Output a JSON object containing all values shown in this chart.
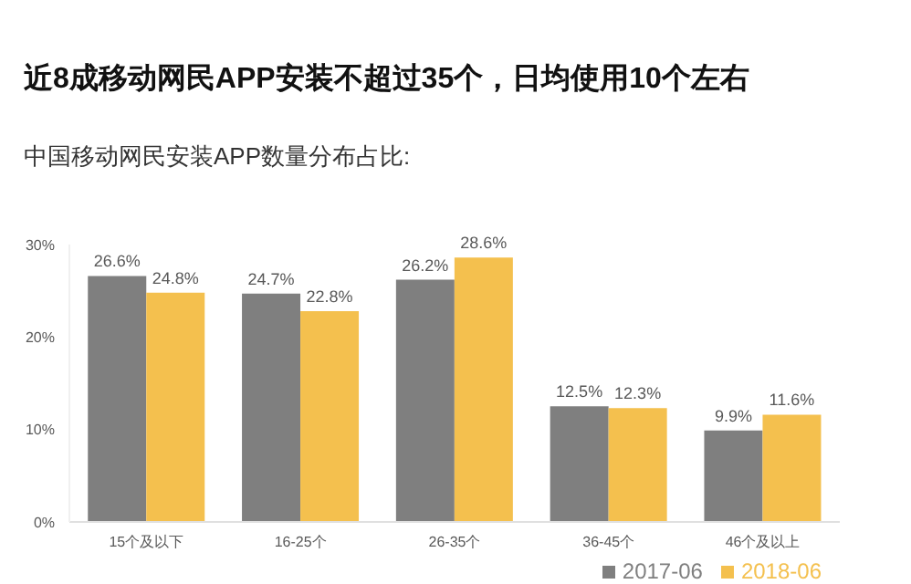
{
  "chart_data": {
    "type": "bar",
    "title": "近8成移动网民APP安装不超过35个，日均使用10个左右",
    "subtitle": "中国移动网民安装APP数量分布占比:",
    "categories": [
      "15个及以下",
      "16-25个",
      "26-35个",
      "36-45个",
      "46个及以上"
    ],
    "series": [
      {
        "name": "2017-06",
        "color": "#7f7f7f",
        "values": [
          26.6,
          24.7,
          26.2,
          12.5,
          9.9
        ],
        "value_labels": [
          "26.6%",
          "24.7%",
          "26.2%",
          "12.5%",
          "9.9%"
        ]
      },
      {
        "name": "2018-06",
        "color": "#f4c04e",
        "values": [
          24.8,
          22.8,
          28.6,
          12.3,
          11.6
        ],
        "value_labels": [
          "24.8%",
          "22.8%",
          "28.6%",
          "12.3%",
          "11.6%"
        ]
      }
    ],
    "ylim": [
      0,
      30
    ],
    "yticks": [
      {
        "value": 0,
        "label": "0%"
      },
      {
        "value": 10,
        "label": "10%"
      },
      {
        "value": 20,
        "label": "20%"
      },
      {
        "value": 30,
        "label": "30%"
      }
    ],
    "grid": false,
    "legend": "bottom right"
  }
}
